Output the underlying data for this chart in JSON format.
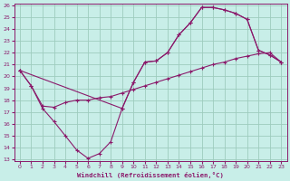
{
  "background_color": "#c8eee8",
  "grid_color": "#9dccbe",
  "line_color": "#8b1a6b",
  "xlabel": "Windchill (Refroidissement éolien,°C)",
  "xlim_min": -0.5,
  "xlim_max": 23.5,
  "ylim_min": 13,
  "ylim_max": 26,
  "xticks": [
    0,
    1,
    2,
    3,
    4,
    5,
    6,
    7,
    8,
    9,
    10,
    11,
    12,
    13,
    14,
    15,
    16,
    17,
    18,
    19,
    20,
    21,
    22,
    23
  ],
  "yticks": [
    13,
    14,
    15,
    16,
    17,
    18,
    19,
    20,
    21,
    22,
    23,
    24,
    25,
    26
  ],
  "curve1_x": [
    0,
    1,
    2,
    3,
    4,
    5,
    6,
    7,
    8,
    9,
    10,
    11,
    12,
    13,
    14,
    15,
    16,
    17,
    18,
    19,
    20,
    21,
    22,
    23
  ],
  "curve1_y": [
    20.5,
    19.2,
    17.3,
    16.2,
    15.0,
    13.8,
    13.1,
    13.5,
    14.5,
    17.3,
    19.5,
    21.2,
    21.3,
    22.0,
    23.5,
    24.5,
    25.8,
    25.8,
    25.6,
    25.3,
    24.8,
    22.2,
    21.8,
    21.2
  ],
  "curve2_x": [
    0,
    1,
    2,
    3,
    4,
    5,
    6,
    7,
    8,
    9,
    10,
    11,
    12,
    13,
    14,
    15,
    16,
    17,
    18,
    19,
    20,
    21,
    22,
    23
  ],
  "curve2_y": [
    20.5,
    19.2,
    17.5,
    17.4,
    17.8,
    18.0,
    18.0,
    18.2,
    18.3,
    18.6,
    18.9,
    19.2,
    19.5,
    19.8,
    20.1,
    20.4,
    20.7,
    21.0,
    21.2,
    21.5,
    21.7,
    21.9,
    22.0,
    21.2
  ],
  "curve3_x": [
    0,
    9,
    10,
    11,
    12,
    13,
    14,
    15,
    16,
    17,
    18,
    19,
    20,
    21,
    22,
    23
  ],
  "curve3_y": [
    20.5,
    17.3,
    19.5,
    21.2,
    21.3,
    22.0,
    23.5,
    24.5,
    25.8,
    25.8,
    25.6,
    25.3,
    24.8,
    22.2,
    21.8,
    21.2
  ]
}
